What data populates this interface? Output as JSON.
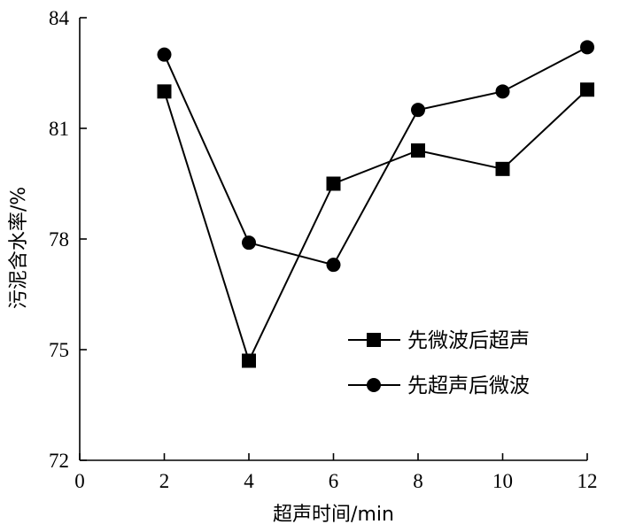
{
  "chart_data": {
    "type": "line",
    "xlabel": "超声时间/min",
    "ylabel": "污泥含水率/%",
    "xlim": [
      0,
      12
    ],
    "ylim": [
      72,
      84
    ],
    "xticks": [
      0,
      2,
      4,
      6,
      8,
      10,
      12
    ],
    "yticks": [
      72,
      75,
      78,
      81,
      84
    ],
    "grid": false,
    "legend_position": "lower-right",
    "series": [
      {
        "name": "先微波后超声",
        "marker": "square",
        "color": "#000000",
        "x": [
          2,
          4,
          6,
          8,
          10,
          12
        ],
        "y": [
          82.0,
          74.7,
          79.5,
          80.4,
          79.9,
          82.05
        ]
      },
      {
        "name": "先超声后微波",
        "marker": "circle",
        "color": "#000000",
        "x": [
          2,
          4,
          6,
          8,
          10,
          12
        ],
        "y": [
          83.0,
          77.9,
          77.3,
          81.5,
          82.0,
          83.2
        ]
      }
    ]
  }
}
